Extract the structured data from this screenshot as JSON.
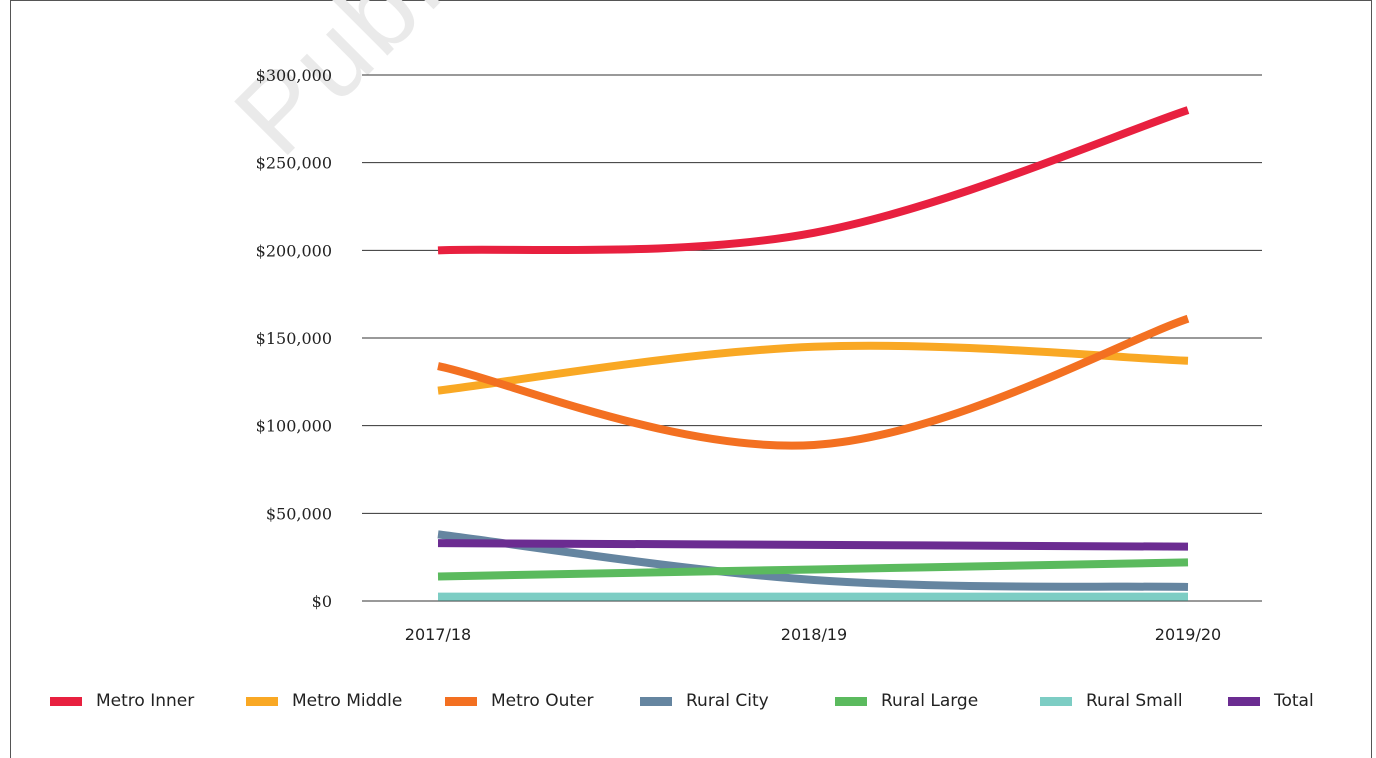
{
  "watermark": "Publis",
  "chart_data": {
    "type": "line",
    "categories": [
      "2017/18",
      "2018/19",
      "2019/20"
    ],
    "ylim": [
      0,
      300000
    ],
    "yticks": [
      "$0",
      "$50,000",
      "$100,000",
      "$150,000",
      "$200,000",
      "$250,000",
      "$300,000"
    ],
    "grid": true,
    "legend_position": "bottom",
    "series": [
      {
        "name": "Metro Inner",
        "color": "#e8203f",
        "values": [
          200000,
          210000,
          280000
        ]
      },
      {
        "name": "Metro Middle",
        "color": "#f9a824",
        "values": [
          120000,
          145000,
          137000
        ]
      },
      {
        "name": "Metro Outer",
        "color": "#f37021",
        "values": [
          134000,
          89000,
          161000
        ]
      },
      {
        "name": "Rural City",
        "color": "#6585a0",
        "values": [
          38000,
          12000,
          8000
        ]
      },
      {
        "name": "Rural Large",
        "color": "#5bba5e",
        "values": [
          14000,
          18000,
          22000
        ]
      },
      {
        "name": "Rural Small",
        "color": "#7dcdc4",
        "values": [
          2500,
          2500,
          2500
        ]
      },
      {
        "name": "Total",
        "color": "#6b2c91",
        "values": [
          33000,
          32000,
          31000
        ]
      }
    ]
  }
}
